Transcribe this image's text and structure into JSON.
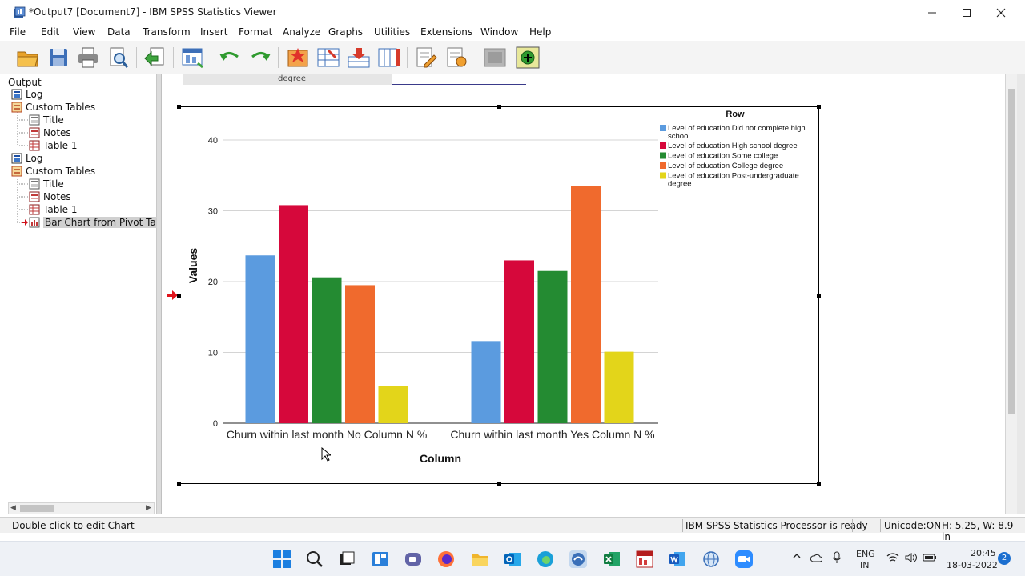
{
  "window": {
    "title": "*Output7 [Document7] - IBM SPSS Statistics Viewer"
  },
  "menu": [
    "File",
    "Edit",
    "View",
    "Data",
    "Transform",
    "Insert",
    "Format",
    "Analyze",
    "Graphs",
    "Utilities",
    "Extensions",
    "Window",
    "Help"
  ],
  "toolbar_icons": [
    "open-icon",
    "save-icon",
    "print-icon",
    "print-preview-icon",
    "export-icon",
    "goto-data-icon",
    "undo-icon",
    "redo-icon",
    "goto-case-icon",
    "goto-variable-icon",
    "insert-cases-icon",
    "insert-variables-icon",
    "edit-icon",
    "script-icon",
    "disabled-icon",
    "add-icon"
  ],
  "outline": {
    "root": "Output",
    "items": [
      {
        "label": "Log",
        "icon": "log-icon"
      },
      {
        "label": "Custom Tables",
        "icon": "tables-icon"
      },
      {
        "label": "Title",
        "icon": "title-icon"
      },
      {
        "label": "Notes",
        "icon": "notes-icon"
      },
      {
        "label": "Table 1",
        "icon": "table-icon"
      },
      {
        "label": "Log",
        "icon": "log-icon"
      },
      {
        "label": "Custom Tables",
        "icon": "tables-icon"
      },
      {
        "label": "Title",
        "icon": "title-icon"
      },
      {
        "label": "Notes",
        "icon": "notes-icon"
      },
      {
        "label": "Table 1",
        "icon": "table-icon"
      },
      {
        "label": "Bar Chart from Pivot Table",
        "icon": "chart-icon"
      }
    ]
  },
  "content": {
    "cut_off_text": "degree"
  },
  "chart_data": {
    "type": "bar",
    "categories": [
      "Churn within last month No Column N %",
      "Churn within last month Yes Column N %"
    ],
    "series": [
      {
        "name": "Level of education Did not complete high school",
        "values": [
          23.7,
          11.6
        ]
      },
      {
        "name": "Level of education High school degree",
        "values": [
          30.8,
          23.0
        ]
      },
      {
        "name": "Level of education Some college",
        "values": [
          20.6,
          21.5
        ]
      },
      {
        "name": "Level of education College degree",
        "values": [
          19.5,
          33.5
        ]
      },
      {
        "name": "Level of education Post-undergraduate degree",
        "values": [
          5.2,
          10.1
        ]
      }
    ],
    "colors": [
      "#5b9bdf",
      "#d6083b",
      "#248b32",
      "#f06a2d",
      "#e3d51a"
    ],
    "xlabel": "Column",
    "ylabel": "Values",
    "legend_title": "Row",
    "yticks": [
      0,
      10,
      20,
      30,
      40
    ],
    "ylim": [
      0,
      40
    ],
    "grid": true,
    "legend_position": "top-right"
  },
  "status": {
    "hint": "Double click to edit Chart",
    "processor": "IBM SPSS Statistics Processor is ready",
    "unicode": "Unicode:ON",
    "dims": "H: 5.25, W: 8.9 in"
  },
  "taskbar": {
    "lang_1": "ENG",
    "lang_2": "IN",
    "time": "20:45",
    "date": "18-03-2022",
    "badge": "2"
  }
}
